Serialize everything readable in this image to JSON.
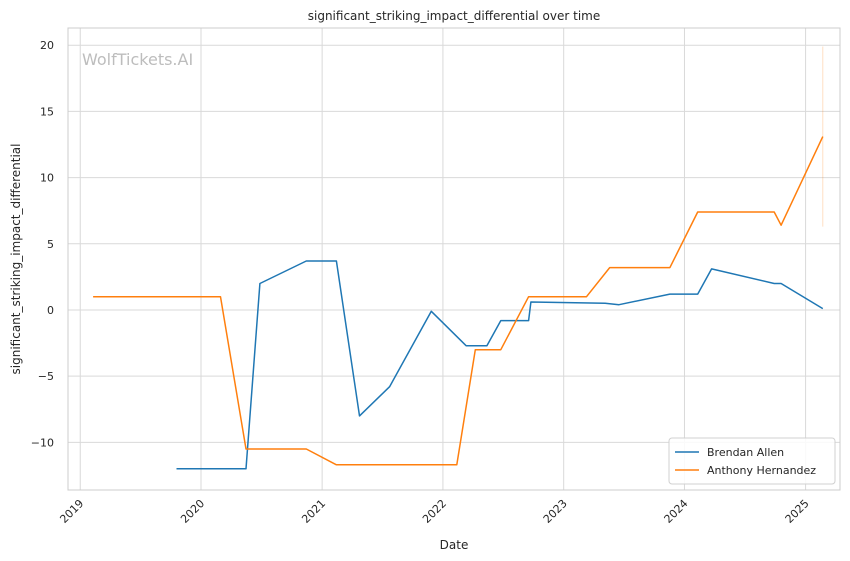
{
  "chart_data": {
    "type": "line",
    "title": "significant_striking_impact_differential over time",
    "xlabel": "Date",
    "ylabel": "significant_striking_impact_differential",
    "watermark": "WolfTickets.AI",
    "xlim": [
      "2018-11-25",
      "2025-04-15"
    ],
    "ylim": [
      -13.6,
      21.3
    ],
    "x_ticks": [
      "2019",
      "2020",
      "2021",
      "2022",
      "2023",
      "2024",
      "2025"
    ],
    "y_ticks": [
      -10,
      -5,
      0,
      5,
      10,
      15,
      20
    ],
    "y_tick_labels": [
      "−10",
      "−5",
      "0",
      "5",
      "10",
      "15",
      "20"
    ],
    "grid": true,
    "legend_position": "lower-right",
    "series": [
      {
        "name": "Brendan Allen",
        "color": "#1f77b4",
        "points": [
          [
            "2019-10-19",
            -12.0
          ],
          [
            "2020-05-16",
            -12.0
          ],
          [
            "2020-06-27",
            2.0
          ],
          [
            "2020-11-14",
            3.7
          ],
          [
            "2021-02-13",
            3.7
          ],
          [
            "2021-04-24",
            -8.0
          ],
          [
            "2021-07-24",
            -5.8
          ],
          [
            "2021-11-27",
            -0.1
          ],
          [
            "2022-03-12",
            -2.7
          ],
          [
            "2022-05-14",
            -2.7
          ],
          [
            "2022-06-25",
            -0.8
          ],
          [
            "2022-09-17",
            -0.8
          ],
          [
            "2022-09-24",
            0.6
          ],
          [
            "2023-05-06",
            0.5
          ],
          [
            "2023-06-17",
            0.4
          ],
          [
            "2023-11-18",
            1.2
          ],
          [
            "2024-02-10",
            1.2
          ],
          [
            "2024-03-23",
            3.1
          ],
          [
            "2024-09-28",
            2.0
          ],
          [
            "2024-10-19",
            2.0
          ],
          [
            "2025-02-22",
            0.1
          ]
        ]
      },
      {
        "name": "Anthony Hernandez",
        "color": "#ff7f0e",
        "points": [
          [
            "2019-02-09",
            1.0
          ],
          [
            "2020-02-29",
            1.0
          ],
          [
            "2020-05-16",
            -10.5
          ],
          [
            "2020-11-14",
            -10.5
          ],
          [
            "2021-02-13",
            -11.7
          ],
          [
            "2022-02-12",
            -11.7
          ],
          [
            "2022-04-09",
            -3.0
          ],
          [
            "2022-06-25",
            -3.0
          ],
          [
            "2022-09-17",
            1.0
          ],
          [
            "2023-03-11",
            1.0
          ],
          [
            "2023-05-20",
            3.2
          ],
          [
            "2023-11-18",
            3.2
          ],
          [
            "2024-02-10",
            7.4
          ],
          [
            "2024-09-28",
            7.4
          ],
          [
            "2024-10-19",
            6.4
          ],
          [
            "2025-02-22",
            13.1
          ]
        ],
        "error_bar": {
          "x": "2025-02-22",
          "low": 6.3,
          "high": 19.9
        }
      }
    ]
  }
}
